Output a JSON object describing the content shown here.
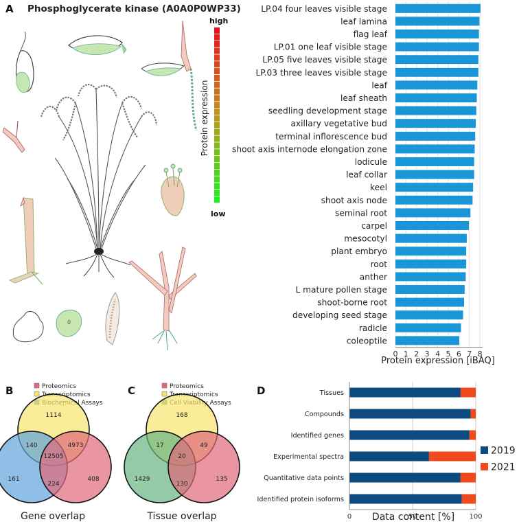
{
  "panels": {
    "a": {
      "letter": "A",
      "title": "Phosphoglycerate kinase (A0A0P0WP33)",
      "scale_high": "high",
      "scale_low": "low",
      "scale_label": "Protein expression",
      "seed_digit": "0"
    },
    "b": {
      "letter": "B",
      "caption": "Gene overlap",
      "legend": [
        "Proteomics",
        "Transcriptomics",
        "Biochemical Assays"
      ],
      "colors": [
        "#e06a7a",
        "#f8e46e",
        "#5fa4dd"
      ]
    },
    "c": {
      "letter": "C",
      "caption": "Tissue overlap",
      "legend": [
        "Proteomics",
        "Transcriptomics",
        "Cell Viability Assays"
      ],
      "colors": [
        "#e06a7a",
        "#f8e46e",
        "#66b380"
      ]
    },
    "d": {
      "letter": "D"
    }
  },
  "chart_data": [
    {
      "type": "bar",
      "orientation": "horizontal",
      "categories": [
        "LP.04 four leaves visible stage",
        "leaf lamina",
        "flag leaf",
        "LP.01 one leaf visible stage",
        "LP.05 five leaves visible stage",
        "LP.03 three leaves visible stage",
        "leaf",
        "leaf sheath",
        "seedling development stage",
        "axillary vegetative bud",
        "terminal inflorescence bud",
        "shoot axis internode elongation zone",
        "lodicule",
        "leaf collar",
        "keel",
        "shoot axis node",
        "seminal root",
        "carpel",
        "mesocotyl",
        "plant embryo",
        "root",
        "anther",
        "L mature pollen stage",
        "shoot-borne root",
        "developing seed stage",
        "radicle",
        "coleoptile"
      ],
      "values": [
        8.05,
        7.95,
        7.9,
        7.9,
        7.85,
        7.85,
        7.75,
        7.7,
        7.65,
        7.6,
        7.55,
        7.5,
        7.45,
        7.45,
        7.35,
        7.3,
        7.1,
        6.95,
        6.75,
        6.7,
        6.7,
        6.65,
        6.55,
        6.5,
        6.4,
        6.2,
        6.05
      ],
      "xlabel": "Protein expression [iBAQ]",
      "xticks": [
        0,
        1,
        2,
        3,
        4,
        5,
        6,
        7,
        8
      ],
      "xlim": [
        0,
        8.25
      ],
      "color": "#1a96d8"
    },
    {
      "type": "venn",
      "regions": {
        "transcriptomics_only": 1114,
        "biochemical_only": 161,
        "proteomics_only": 408,
        "transcriptomics_biochemical": 140,
        "transcriptomics_proteomics": 4973,
        "proteomics_biochemical": 224,
        "all_three": 12505
      }
    },
    {
      "type": "venn",
      "regions": {
        "transcriptomics_only": 168,
        "cell_viability_only": 1429,
        "proteomics_only": 135,
        "transcriptomics_cell_viability": 17,
        "transcriptomics_proteomics": 49,
        "proteomics_cell_viability": 130,
        "all_three": 20
      }
    },
    {
      "type": "bar",
      "orientation": "horizontal",
      "stacked": true,
      "categories": [
        "Tissues",
        "Compounds",
        "Identified genes",
        "Experimental spectra",
        "Quantitative data points",
        "Identified protein isoforms"
      ],
      "series": [
        {
          "name": "2019",
          "values": [
            88,
            96,
            95,
            63,
            88,
            89
          ],
          "color": "#0d4a80"
        },
        {
          "name": "2021",
          "values": [
            12,
            4,
            5,
            37,
            12,
            11
          ],
          "color": "#f04a1c"
        }
      ],
      "xlabel": "Data content [%]",
      "xticks": [
        0,
        50,
        100
      ],
      "xlim": [
        0,
        100
      ],
      "legend_position": "right"
    }
  ]
}
